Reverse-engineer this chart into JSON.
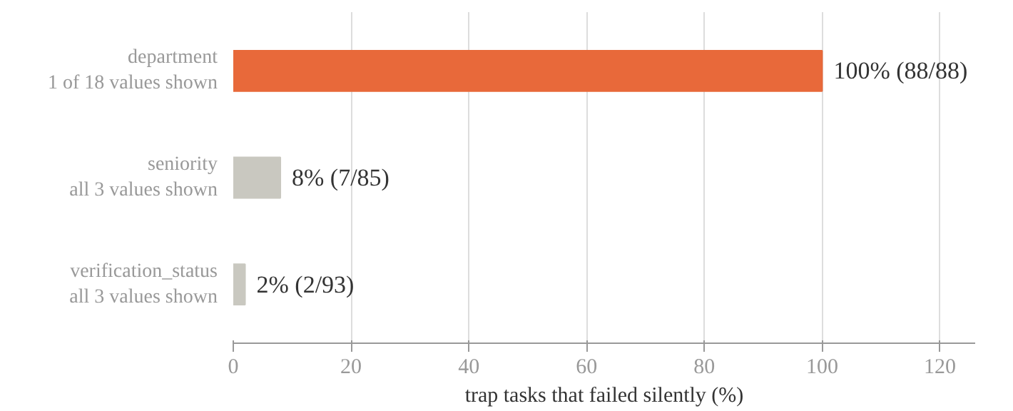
{
  "chart_data": {
    "type": "bar",
    "orientation": "horizontal",
    "xlabel": "trap tasks that failed silently (%)",
    "categories": [
      "department\n1 of 18 values shown",
      "seniority\nall 3 values shown",
      "verification_status\nall 3 values shown"
    ],
    "values": [
      100,
      8,
      2
    ],
    "colors": [
      "#e8693a",
      "#c9c8c0",
      "#c9c8c0"
    ],
    "value_labels": [
      "100%  (88/88)",
      "8%  (7/85)",
      "2%  (2/93)"
    ],
    "xlim": [
      0,
      126
    ],
    "xticks": [
      0,
      20,
      40,
      60,
      80,
      100,
      120
    ],
    "grid": "x"
  }
}
